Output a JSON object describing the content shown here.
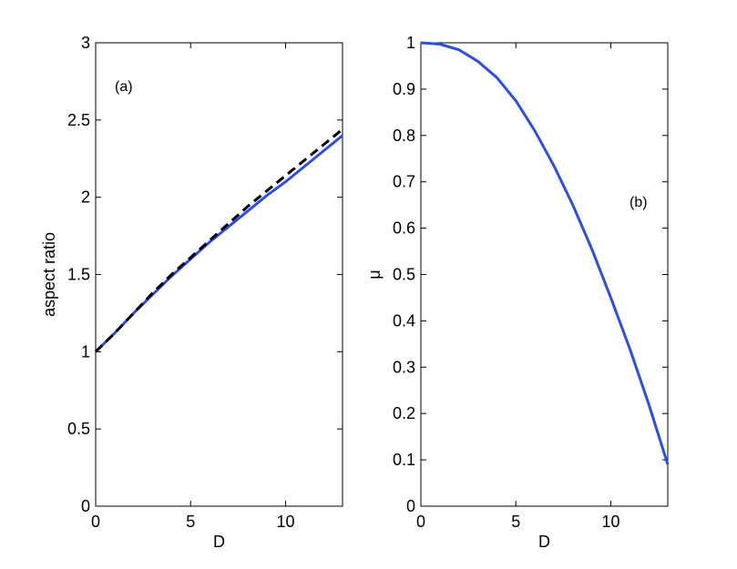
{
  "chart_data": [
    {
      "type": "line",
      "xlabel": "D",
      "ylabel": "aspect ratio",
      "annotation": "(a)",
      "x": [
        0,
        1,
        2,
        3,
        4,
        5,
        6,
        7,
        8,
        9,
        10,
        11,
        12,
        13
      ],
      "series": [
        {
          "color": "#2d4ee6",
          "linestyle": "solid",
          "values": [
            1.0,
            1.12,
            1.25,
            1.37,
            1.49,
            1.6,
            1.71,
            1.81,
            1.91,
            2.01,
            2.1,
            2.2,
            2.3,
            2.4
          ]
        },
        {
          "color": "#000000",
          "linestyle": "dashed",
          "values": [
            1.0,
            1.12,
            1.25,
            1.38,
            1.5,
            1.61,
            1.72,
            1.83,
            1.94,
            2.04,
            2.14,
            2.24,
            2.34,
            2.44
          ]
        }
      ],
      "xlim": [
        0,
        13
      ],
      "ylim": [
        0,
        3
      ],
      "xticks": [
        0,
        5,
        10
      ],
      "yticks": [
        0,
        0.5,
        1,
        1.5,
        2,
        2.5,
        3
      ]
    },
    {
      "type": "line",
      "xlabel": "D",
      "ylabel": "μ",
      "annotation": "(b)",
      "x": [
        0,
        1,
        2,
        3,
        4,
        5,
        6,
        7,
        8,
        9,
        10,
        11,
        12,
        13
      ],
      "series": [
        {
          "color": "#2d4ee6",
          "linestyle": "solid",
          "values": [
            1.0,
            0.997,
            0.985,
            0.96,
            0.925,
            0.875,
            0.81,
            0.735,
            0.65,
            0.555,
            0.45,
            0.34,
            0.22,
            0.09
          ]
        }
      ],
      "xlim": [
        0,
        13
      ],
      "ylim": [
        0,
        1
      ],
      "xticks": [
        0,
        5,
        10
      ],
      "yticks": [
        0,
        0.1,
        0.2,
        0.3,
        0.4,
        0.5,
        0.6,
        0.7,
        0.8,
        0.9,
        1
      ]
    }
  ]
}
